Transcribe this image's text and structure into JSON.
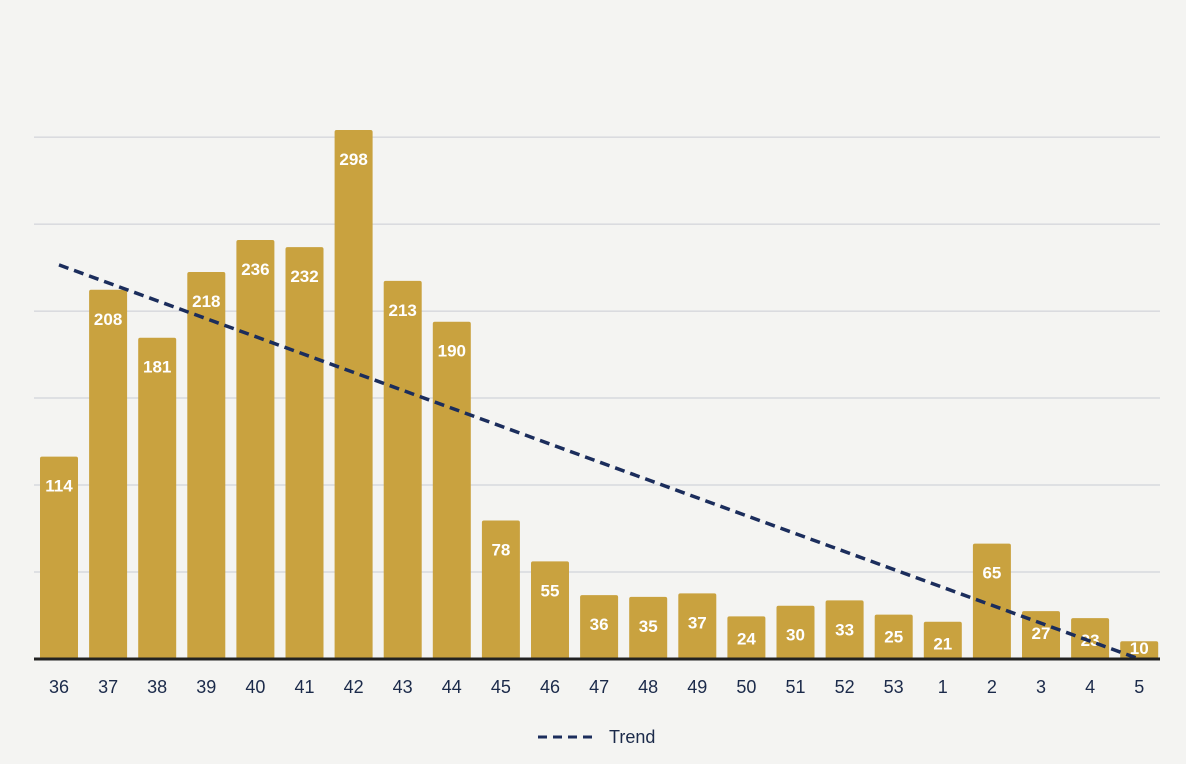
{
  "chart_data": {
    "type": "bar",
    "categories": [
      "36",
      "37",
      "38",
      "39",
      "40",
      "41",
      "42",
      "43",
      "44",
      "45",
      "46",
      "47",
      "48",
      "49",
      "50",
      "51",
      "52",
      "53",
      "1",
      "2",
      "3",
      "4",
      "5"
    ],
    "values": [
      114,
      208,
      181,
      218,
      236,
      232,
      298,
      213,
      190,
      78,
      55,
      36,
      35,
      37,
      24,
      30,
      33,
      25,
      21,
      65,
      27,
      23,
      10
    ],
    "trend": {
      "name": "Trend",
      "style": "dashed",
      "start": 222,
      "end": -2
    },
    "ylim": [
      0,
      320
    ],
    "grid": true,
    "legend": "bottom-center",
    "colors": {
      "bar": "#c9a23f",
      "trend": "#1b2d5c",
      "axis": "#222222",
      "grid": "#c9ccd4",
      "label": "#ffffff",
      "tick": "#1b2a4a"
    }
  }
}
